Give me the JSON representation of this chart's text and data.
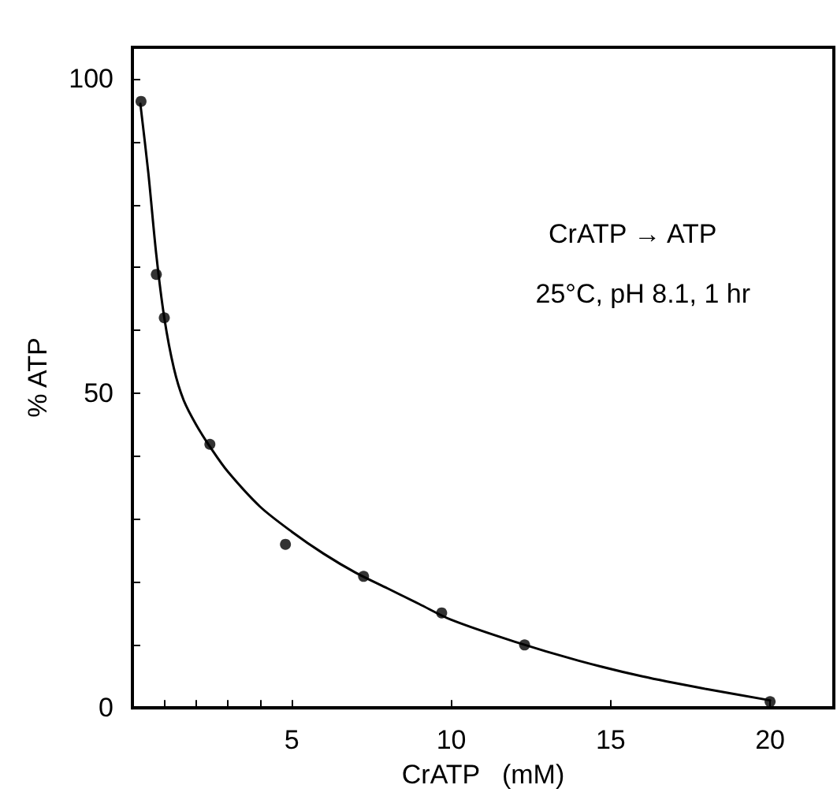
{
  "chart_data": {
    "type": "scatter",
    "xlabel": "CrATP   (mM)",
    "ylabel": "% ATP",
    "annotations": [
      "CrATP → ATP",
      "25°C, pH 8.1, 1 hr"
    ],
    "xlim": [
      0,
      22
    ],
    "xticks": [
      {
        "value": 1,
        "label": null
      },
      {
        "value": 2,
        "label": null
      },
      {
        "value": 3,
        "label": null
      },
      {
        "value": 4,
        "label": null
      },
      5,
      10,
      15,
      20
    ],
    "ylim": [
      0,
      105
    ],
    "yticks": [
      0,
      {
        "value": 10,
        "label": null
      },
      {
        "value": 20,
        "label": null
      },
      {
        "value": 30,
        "label": null
      },
      {
        "value": 40,
        "label": null
      },
      50,
      {
        "value": 60,
        "label": null
      },
      {
        "value": 70,
        "label": null
      },
      {
        "value": 80,
        "label": null
      },
      {
        "value": 90,
        "label": null
      },
      100
    ],
    "grid": false,
    "marker": "circle",
    "series": [
      {
        "type": "scatter",
        "color": "#000000",
        "x": [
          0.27,
          0.75,
          1.0,
          2.43,
          4.8,
          7.25,
          9.7,
          12.3,
          20
        ],
        "values": [
          96.4,
          68.9,
          62,
          41.9,
          26,
          20.9,
          15.1,
          10,
          1
        ]
      },
      {
        "type": "line",
        "color": "#000000",
        "marker": "none",
        "line_style": "solid",
        "x": [
          0.25,
          0.5,
          0.75,
          1.0,
          1.3,
          1.6,
          2,
          2.5,
          3,
          4,
          5,
          6,
          7,
          8,
          9,
          10,
          12,
          14,
          16,
          18,
          20
        ],
        "values": [
          96,
          85,
          72,
          62,
          54,
          49,
          45,
          41,
          37.5,
          32,
          28,
          24.5,
          21.5,
          19,
          16.5,
          14,
          10.5,
          7.5,
          5,
          3,
          1.2
        ]
      }
    ]
  }
}
